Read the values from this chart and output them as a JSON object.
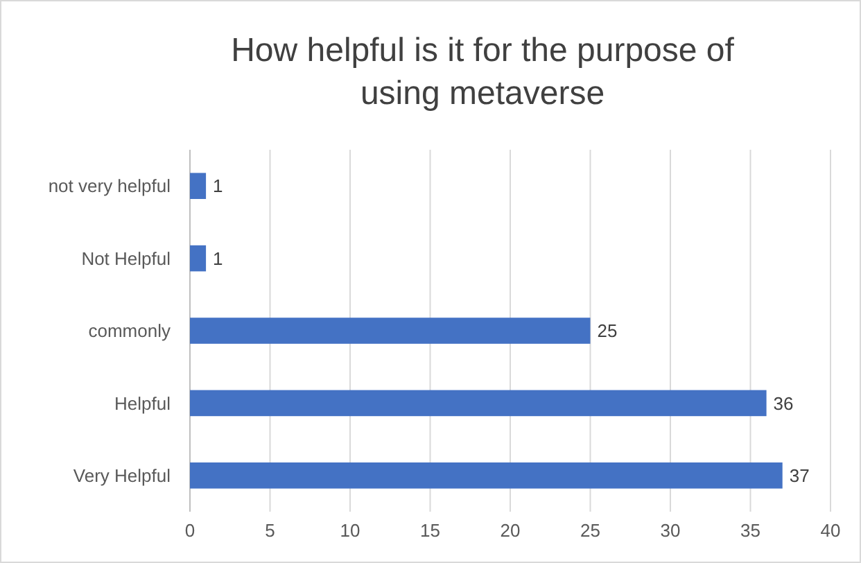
{
  "chart_data": {
    "type": "bar",
    "orientation": "horizontal",
    "title": "How helpful is it for the purpose of using  metaverse",
    "categories": [
      "not very helpful",
      "Not Helpful",
      "commonly",
      "Helpful",
      "Very Helpful"
    ],
    "values": [
      1,
      1,
      25,
      36,
      37
    ],
    "color": "#4472c4",
    "data_labels": true,
    "xlim": [
      0,
      40
    ],
    "xticks": [
      0,
      5,
      10,
      15,
      20,
      25,
      30,
      35,
      40
    ],
    "grid": "x"
  }
}
